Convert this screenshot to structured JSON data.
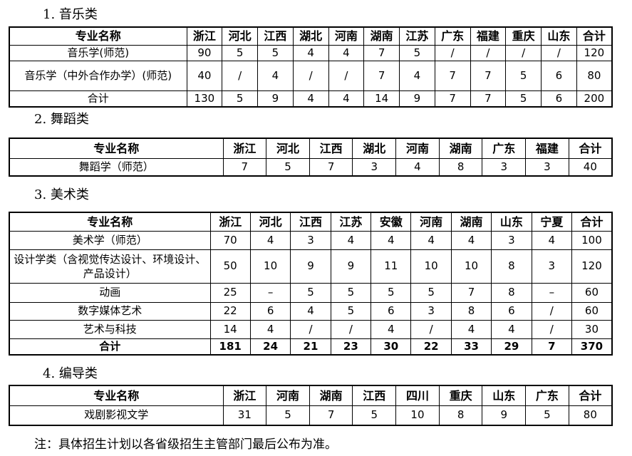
{
  "sections": [
    {
      "title": "1. 音乐类",
      "headers": [
        "专业名称",
        "浙江",
        "河北",
        "江西",
        "湖北",
        "河南",
        "湖南",
        "江苏",
        "广东",
        "福建",
        "重庆",
        "山东",
        "合计"
      ],
      "rows": [
        [
          "音乐学(师范)",
          "90",
          "5",
          "5",
          "4",
          "4",
          "7",
          "5",
          "/",
          "/",
          "/",
          "/",
          "120"
        ],
        [
          "音乐学（中外合作办学）(师范)",
          "40",
          "/",
          "4",
          "/",
          "/",
          "7",
          "4",
          "7",
          "7",
          "5",
          "6",
          "80"
        ],
        [
          "合计",
          "130",
          "5",
          "9",
          "4",
          "4",
          "14",
          "9",
          "7",
          "7",
          "5",
          "6",
          "200"
        ]
      ]
    },
    {
      "title": "2. 舞蹈类",
      "headers": [
        "专业名称",
        "浙江",
        "河北",
        "江西",
        "湖北",
        "河南",
        "湖南",
        "广东",
        "福建",
        "合计"
      ],
      "rows": [
        [
          "舞蹈学（师范）",
          "7",
          "5",
          "7",
          "3",
          "4",
          "8",
          "3",
          "3",
          "40"
        ]
      ]
    },
    {
      "title": "3. 美术类",
      "headers": [
        "专业名称",
        "浙江",
        "河北",
        "江西",
        "江苏",
        "安徽",
        "河南",
        "湖南",
        "山东",
        "宁夏",
        "合计"
      ],
      "rows": [
        [
          "美术学（师范）",
          "70",
          "4",
          "3",
          "4",
          "4",
          "4",
          "4",
          "3",
          "4",
          "100"
        ],
        [
          "设计学类（含视觉传达设计、环境设计、产品设计）",
          "50",
          "10",
          "9",
          "9",
          "11",
          "10",
          "10",
          "8",
          "3",
          "120"
        ],
        [
          "动画",
          "25",
          "–",
          "5",
          "5",
          "5",
          "5",
          "7",
          "8",
          "–",
          "60"
        ],
        [
          "数字媒体艺术",
          "22",
          "6",
          "4",
          "5",
          "6",
          "3",
          "8",
          "6",
          "/",
          "60"
        ],
        [
          "艺术与科技",
          "14",
          "4",
          "/",
          "/",
          "4",
          "/",
          "4",
          "4",
          "/",
          "30"
        ],
        [
          "合计",
          "181",
          "24",
          "21",
          "23",
          "30",
          "22",
          "33",
          "29",
          "7",
          "370"
        ]
      ]
    },
    {
      "title": "4. 编导类",
      "headers": [
        "专业名称",
        "浙江",
        "河南",
        "湖南",
        "江西",
        "四川",
        "重庆",
        "山东",
        "广东",
        "合计"
      ],
      "rows": [
        [
          "戏剧影视文学",
          "31",
          "5",
          "7",
          "5",
          "10",
          "8",
          "9",
          "5",
          "80"
        ]
      ]
    }
  ],
  "note": "注：具体招生计划以各省级招生主管部门最后公布为准。"
}
